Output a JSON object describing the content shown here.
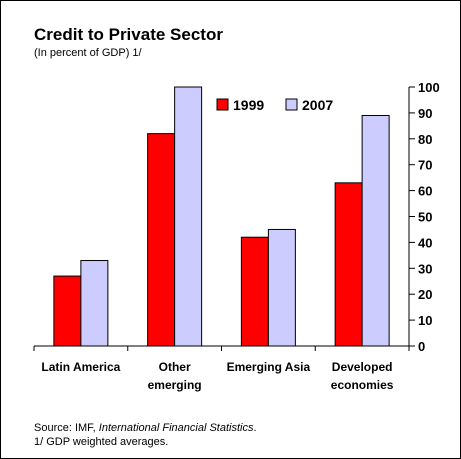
{
  "chart_data": {
    "type": "bar",
    "title": "Credit to Private Sector",
    "subtitle": "(In percent of GDP) 1/",
    "categories": [
      "Latin America",
      "Other emerging",
      "Emerging Asia",
      "Developed economies"
    ],
    "category_lines": [
      [
        "Latin America"
      ],
      [
        "Other",
        "emerging"
      ],
      [
        "Emerging Asia"
      ],
      [
        "Developed",
        "economies"
      ]
    ],
    "series": [
      {
        "name": "1999",
        "color": "#ff0000",
        "values": [
          27,
          82,
          42,
          63
        ]
      },
      {
        "name": "2007",
        "color": "#ccccff",
        "values": [
          33,
          100,
          45,
          89
        ]
      }
    ],
    "ylim": [
      0,
      100
    ],
    "yticks": [
      0,
      10,
      20,
      30,
      40,
      50,
      60,
      70,
      80,
      90,
      100
    ],
    "y_axis_side": "right",
    "grid": false,
    "legend_position": "top-center"
  },
  "source": {
    "prefix": "Source: IMF, ",
    "italic": "International Financial Statistics",
    "suffix": ".",
    "note": "1/ GDP weighted averages."
  }
}
